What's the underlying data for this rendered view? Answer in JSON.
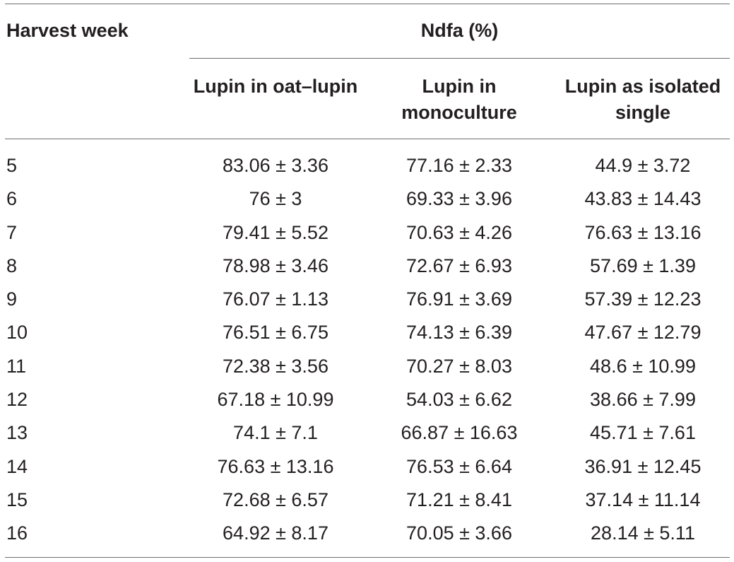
{
  "table": {
    "header": {
      "week_label": "Harvest week",
      "group_label": "Ndfa (%)",
      "columns": [
        "Lupin in oat–lupin",
        "Lupin in\nmonoculture",
        "Lupin as isolated\nsingle"
      ]
    },
    "rows": [
      [
        "5",
        "83.06 ± 3.36",
        "77.16 ± 2.33",
        "44.9 ± 3.72"
      ],
      [
        "6",
        "76 ± 3",
        "69.33 ± 3.96",
        "43.83 ± 14.43"
      ],
      [
        "7",
        "79.41 ± 5.52",
        "70.63 ± 4.26",
        "76.63 ± 13.16"
      ],
      [
        "8",
        "78.98 ± 3.46",
        "72.67 ± 6.93",
        "57.69 ± 1.39"
      ],
      [
        "9",
        "76.07 ± 1.13",
        "76.91 ± 3.69",
        "57.39 ± 12.23"
      ],
      [
        "10",
        "76.51 ± 6.75",
        "74.13 ± 6.39",
        "47.67 ± 12.79"
      ],
      [
        "11",
        "72.38 ± 3.56",
        "70.27 ± 8.03",
        "48.6 ± 10.99"
      ],
      [
        "12",
        "67.18 ± 10.99",
        "54.03 ± 6.62",
        "38.66 ± 7.99"
      ],
      [
        "13",
        "74.1 ± 7.1",
        "66.87 ± 16.63",
        "45.71 ± 7.61"
      ],
      [
        "14",
        "76.63 ± 13.16",
        "76.53 ± 6.64",
        "36.91 ± 12.45"
      ],
      [
        "15",
        "72.68 ± 6.57",
        "71.21 ± 8.41",
        "37.14 ± 11.14"
      ],
      [
        "16",
        "64.92 ± 8.17",
        "70.05 ± 3.66",
        "28.14 ± 5.11"
      ]
    ]
  }
}
